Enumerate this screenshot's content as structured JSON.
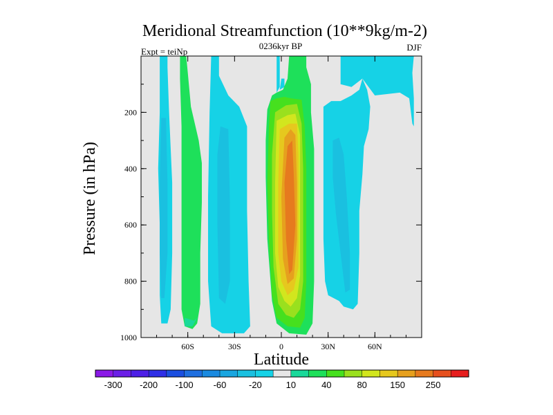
{
  "chart_data": {
    "type": "contour",
    "title": "Meridional Streamfunction (10**9kg/m-2)",
    "subtitle_left": "Expt = teiNp",
    "subtitle_center": "0236kyr BP",
    "subtitle_right": "DJF",
    "xlabel": "Latitude",
    "ylabel": "Pressure (in hPa)",
    "xlim": [
      -90,
      90
    ],
    "ylim": [
      1000,
      0
    ],
    "xticks": [
      {
        "value": -60,
        "label": "60S"
      },
      {
        "value": -30,
        "label": "30S"
      },
      {
        "value": 0,
        "label": "0"
      },
      {
        "value": 30,
        "label": "30N"
      },
      {
        "value": 60,
        "label": "60N"
      }
    ],
    "yticks": [
      {
        "value": 200,
        "label": "200"
      },
      {
        "value": 400,
        "label": "400"
      },
      {
        "value": 600,
        "label": "600"
      },
      {
        "value": 800,
        "label": "800"
      },
      {
        "value": 1000,
        "label": "1000"
      }
    ],
    "colorbar": {
      "levels": [
        -300,
        -250,
        -200,
        -150,
        -100,
        -80,
        -60,
        -40,
        -20,
        -10,
        10,
        20,
        40,
        60,
        80,
        100,
        150,
        200,
        250,
        300
      ],
      "labels": [
        "-300",
        "-200",
        "-100",
        "-60",
        "-20",
        "10",
        "40",
        "80",
        "150",
        "250"
      ],
      "label_boundary_indices": [
        0,
        2,
        4,
        6,
        8,
        10,
        12,
        14,
        16,
        18
      ],
      "colors": [
        "#8a19e6",
        "#6b1fe6",
        "#4d1fe6",
        "#2f2fe6",
        "#1b4fe0",
        "#1f6fe0",
        "#1a8ae0",
        "#1aa6e0",
        "#1ac0e0",
        "#16d2e6",
        "#e6e6e6",
        "#1ad99a",
        "#1ee05a",
        "#46e01e",
        "#9ae01e",
        "#d2e61e",
        "#e6c81e",
        "#e6a01e",
        "#e67a1e",
        "#e6501e",
        "#e61e1e"
      ]
    },
    "regions": [
      {
        "name": "southern-polar-cell",
        "level_index": 9,
        "points": [
          [
            -78,
            0
          ],
          [
            -73,
            0
          ],
          [
            -73,
            40
          ],
          [
            -72,
            200
          ],
          [
            -70,
            450
          ],
          [
            -70,
            700
          ],
          [
            -71,
            900
          ],
          [
            -73,
            950
          ],
          [
            -77,
            950
          ],
          [
            -78,
            850
          ],
          [
            -78,
            600
          ],
          [
            -79,
            400
          ],
          [
            -78,
            200
          ]
        ]
      },
      {
        "name": "southern-polar-cell-core",
        "level_index": 8,
        "points": [
          [
            -77,
            220
          ],
          [
            -74,
            220
          ],
          [
            -73,
            450
          ],
          [
            -73,
            700
          ],
          [
            -75,
            860
          ],
          [
            -77,
            860
          ],
          [
            -78,
            700
          ],
          [
            -78,
            450
          ]
        ]
      },
      {
        "name": "southern-ferrel-cell",
        "level_index": 12,
        "points": [
          [
            -65,
            0
          ],
          [
            -61,
            0
          ],
          [
            -60,
            60
          ],
          [
            -58,
            180
          ],
          [
            -53,
            300
          ],
          [
            -51,
            380
          ],
          [
            -51,
            520
          ],
          [
            -52,
            700
          ],
          [
            -52,
            880
          ],
          [
            -54,
            950
          ],
          [
            -57,
            970
          ],
          [
            -62,
            960
          ],
          [
            -64,
            900
          ],
          [
            -64,
            700
          ],
          [
            -64,
            450
          ],
          [
            -64,
            250
          ],
          [
            -65,
            80
          ]
        ]
      },
      {
        "name": "southern-ferrel-cell-edge",
        "level_index": 11,
        "points": [
          [
            -62,
            930
          ],
          [
            -56,
            940
          ],
          [
            -54,
            930
          ],
          [
            -57,
            960
          ],
          [
            -62,
            960
          ]
        ]
      },
      {
        "name": "southern-hadley-cell",
        "level_index": 9,
        "points": [
          [
            -45,
            0
          ],
          [
            -40,
            0
          ],
          [
            -40,
            70
          ],
          [
            -34,
            140
          ],
          [
            -27,
            180
          ],
          [
            -22,
            250
          ],
          [
            -22,
            550
          ],
          [
            -21,
            800
          ],
          [
            -20,
            960
          ],
          [
            -24,
            985
          ],
          [
            -38,
            985
          ],
          [
            -45,
            960
          ],
          [
            -47,
            800
          ],
          [
            -47,
            500
          ],
          [
            -46,
            200
          ]
        ]
      },
      {
        "name": "southern-hadley-cell-core",
        "level_index": 8,
        "points": [
          [
            -39,
            250
          ],
          [
            -34,
            260
          ],
          [
            -33,
            520
          ],
          [
            -33,
            800
          ],
          [
            -36,
            880
          ],
          [
            -40,
            860
          ],
          [
            -41,
            600
          ],
          [
            -41,
            350
          ]
        ]
      },
      {
        "name": "equatorial-upper-branch",
        "level_index": 9,
        "points": [
          [
            -3,
            0
          ],
          [
            -1,
            0
          ],
          [
            -1,
            110
          ],
          [
            -3,
            130
          ],
          [
            -3,
            60
          ]
        ]
      },
      {
        "name": "equatorial-upper-branch-2",
        "level_index": 9,
        "points": [
          [
            -1,
            120
          ],
          [
            2,
            110
          ],
          [
            2,
            80
          ],
          [
            0,
            80
          ]
        ]
      },
      {
        "name": "northern-hadley-cell",
        "level_index": 12,
        "points": [
          [
            5,
            0
          ],
          [
            16,
            0
          ],
          [
            16,
            40
          ],
          [
            19,
            100
          ],
          [
            19,
            200
          ],
          [
            21,
            330
          ],
          [
            21,
            550
          ],
          [
            21,
            800
          ],
          [
            20,
            950
          ],
          [
            16,
            990
          ],
          [
            5,
            985
          ],
          [
            -3,
            950
          ],
          [
            -6,
            870
          ],
          [
            -9,
            650
          ],
          [
            -10,
            430
          ],
          [
            -10,
            300
          ],
          [
            -9,
            190
          ],
          [
            -6,
            140
          ],
          [
            -3,
            130
          ],
          [
            1,
            120
          ],
          [
            4,
            80
          ]
        ]
      },
      {
        "name": "northern-hadley-cell-l40",
        "level_index": 13,
        "points": [
          [
            -7,
            160
          ],
          [
            -3,
            150
          ],
          [
            2,
            145
          ],
          [
            6,
            150
          ],
          [
            13,
            155
          ],
          [
            15,
            250
          ],
          [
            16,
            400
          ],
          [
            16,
            600
          ],
          [
            16,
            800
          ],
          [
            15,
            930
          ],
          [
            12,
            965
          ],
          [
            4,
            960
          ],
          [
            -3,
            930
          ],
          [
            -6,
            850
          ],
          [
            -8,
            650
          ],
          [
            -9,
            450
          ],
          [
            -8,
            250
          ]
        ]
      },
      {
        "name": "northern-hadley-cell-l60",
        "level_index": 14,
        "points": [
          [
            -4,
            200
          ],
          [
            3,
            175
          ],
          [
            10,
            170
          ],
          [
            13,
            240
          ],
          [
            14,
            400
          ],
          [
            14,
            600
          ],
          [
            14,
            800
          ],
          [
            12,
            900
          ],
          [
            8,
            930
          ],
          [
            3,
            920
          ],
          [
            -2,
            880
          ],
          [
            -5,
            750
          ],
          [
            -6,
            550
          ],
          [
            -6,
            350
          ]
        ]
      },
      {
        "name": "northern-hadley-cell-l80",
        "level_index": 15,
        "points": [
          [
            -3,
            230
          ],
          [
            4,
            210
          ],
          [
            9,
            205
          ],
          [
            12,
            280
          ],
          [
            12,
            420
          ],
          [
            12,
            600
          ],
          [
            12,
            780
          ],
          [
            10,
            860
          ],
          [
            6,
            890
          ],
          [
            2,
            870
          ],
          [
            -2,
            820
          ],
          [
            -4,
            700
          ],
          [
            -4,
            450
          ]
        ]
      },
      {
        "name": "northern-hadley-cell-l100",
        "level_index": 16,
        "points": [
          [
            -1,
            260
          ],
          [
            5,
            240
          ],
          [
            10,
            240
          ],
          [
            11,
            350
          ],
          [
            11,
            550
          ],
          [
            11,
            750
          ],
          [
            8,
            830
          ],
          [
            4,
            850
          ],
          [
            0,
            800
          ],
          [
            -2,
            700
          ],
          [
            -2,
            450
          ]
        ]
      },
      {
        "name": "northern-hadley-cell-l150",
        "level_index": 17,
        "points": [
          [
            2,
            290
          ],
          [
            6,
            260
          ],
          [
            9,
            280
          ],
          [
            10,
            450
          ],
          [
            10,
            650
          ],
          [
            8,
            790
          ],
          [
            4,
            810
          ],
          [
            1,
            720
          ],
          [
            0,
            500
          ]
        ]
      },
      {
        "name": "northern-hadley-cell-l200",
        "level_index": 18,
        "points": [
          [
            4,
            320
          ],
          [
            7,
            300
          ],
          [
            8,
            420
          ],
          [
            9,
            600
          ],
          [
            7,
            760
          ],
          [
            5,
            775
          ],
          [
            3,
            650
          ],
          [
            2,
            450
          ]
        ]
      },
      {
        "name": "northern-ferrel-cell",
        "level_index": 9,
        "points": [
          [
            27,
            180
          ],
          [
            32,
            160
          ],
          [
            38,
            160
          ],
          [
            45,
            140
          ],
          [
            50,
            120
          ],
          [
            52,
            80
          ],
          [
            55,
            120
          ],
          [
            57,
            180
          ],
          [
            56,
            260
          ],
          [
            53,
            320
          ],
          [
            52,
            420
          ],
          [
            50,
            550
          ],
          [
            50,
            700
          ],
          [
            49,
            880
          ],
          [
            46,
            900
          ],
          [
            40,
            890
          ],
          [
            37,
            870
          ],
          [
            30,
            850
          ],
          [
            28,
            800
          ],
          [
            27,
            650
          ],
          [
            27,
            420
          ],
          [
            27,
            250
          ]
        ]
      },
      {
        "name": "northern-ferrel-cell-core",
        "level_index": 8,
        "points": [
          [
            33,
            300
          ],
          [
            37,
            290
          ],
          [
            40,
            350
          ],
          [
            42,
            500
          ],
          [
            44,
            700
          ],
          [
            44,
            830
          ],
          [
            41,
            840
          ],
          [
            38,
            700
          ],
          [
            35,
            560
          ],
          [
            33,
            430
          ]
        ]
      },
      {
        "name": "northern-polar-upper",
        "level_index": 9,
        "points": [
          [
            38,
            0
          ],
          [
            85,
            0
          ],
          [
            84,
            60
          ],
          [
            85,
            150
          ],
          [
            85,
            250
          ],
          [
            84,
            240
          ],
          [
            82,
            150
          ],
          [
            76,
            130
          ],
          [
            60,
            140
          ],
          [
            52,
            80
          ],
          [
            45,
            110
          ],
          [
            38,
            100
          ]
        ]
      }
    ]
  }
}
